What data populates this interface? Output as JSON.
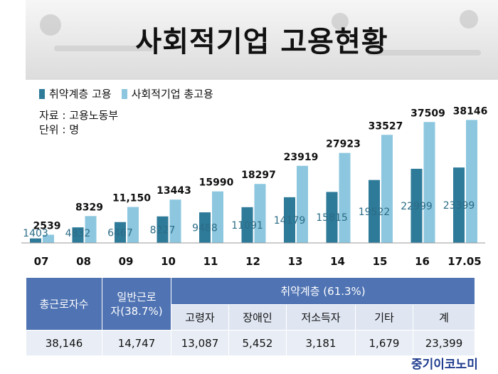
{
  "title": "사회적기업 고용현황",
  "legend": {
    "dark": "취약계층 고용",
    "light": "사회적기업 총고용"
  },
  "source_lines": [
    "자료 : 고용노동부",
    "단위 : 명"
  ],
  "colors": {
    "dark": "#2e7a99",
    "light": "#8cc7df",
    "header": "#4f73b3"
  },
  "chart_data": {
    "type": "bar",
    "categories": [
      "07",
      "08",
      "09",
      "10",
      "11",
      "12",
      "13",
      "14",
      "15",
      "16",
      "17.05"
    ],
    "series": [
      {
        "name": "취약계층 고용",
        "values": [
          1403,
          4832,
          6467,
          8227,
          9488,
          11091,
          14179,
          15815,
          19522,
          22999,
          23399
        ],
        "labels": [
          "1403",
          "4832",
          "6467",
          "8227",
          "9488",
          "11091",
          "14179",
          "15815",
          "19522",
          "22999",
          "23399"
        ]
      },
      {
        "name": "사회적기업 총고용",
        "values": [
          2539,
          8329,
          11150,
          13443,
          15990,
          18297,
          23919,
          27923,
          33527,
          37509,
          38146
        ],
        "labels": [
          "2539",
          "8329",
          "11,150",
          "13443",
          "15990",
          "18297",
          "23919",
          "27923",
          "33527",
          "37509",
          "38146"
        ]
      }
    ],
    "ylim": [
      0,
      40000
    ]
  },
  "table": {
    "h_total": "총근로자수",
    "h_general_1": "일반근로",
    "h_general_2": "자(38.7%)",
    "h_vulnerable": "취약계층 (61.3%)",
    "sub_headers": [
      "고령자",
      "장애인",
      "저소득자",
      "기타",
      "계"
    ],
    "total": "38,146",
    "general": "14,747",
    "values": [
      "13,087",
      "5,452",
      "3,181",
      "1,679",
      "23,399"
    ]
  },
  "logo": "중기이코노미"
}
